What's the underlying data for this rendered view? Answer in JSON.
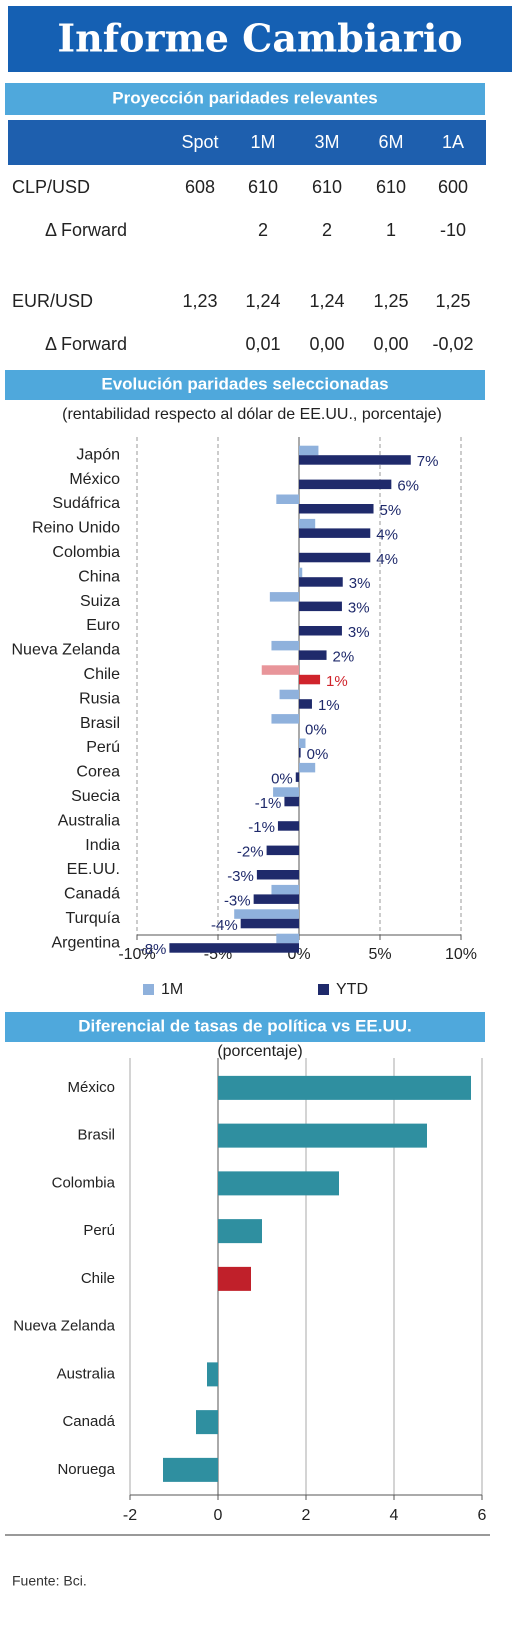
{
  "header": {
    "title": "Informe Cambiario"
  },
  "table": {
    "title": "Proyección paridades relevantes",
    "columns": [
      "Spot",
      "1M",
      "3M",
      "6M",
      "1A"
    ],
    "rows": [
      {
        "label": "CLP/USD",
        "cells": [
          "608",
          "610",
          "610",
          "610",
          "600"
        ]
      },
      {
        "label": "Δ Forward",
        "cells": [
          null,
          "2",
          "2",
          "1",
          "-10"
        ]
      },
      {
        "label": "EUR/USD",
        "cells": [
          "1,23",
          "1,24",
          "1,24",
          "1,25",
          "1,25"
        ]
      },
      {
        "label": "Δ Forward",
        "cells": [
          null,
          "0,01",
          "0,00",
          "0,00",
          "-0,02"
        ]
      }
    ]
  },
  "chart_data": [
    {
      "type": "bar",
      "orientation": "horizontal",
      "title": "Evolución paridades seleccionadas",
      "subtitle": "(rentabilidad respecto al dólar de EE.UU., porcentaje)",
      "categories": [
        "Japón",
        "México",
        "Sudáfrica",
        "Reino Unido",
        "Colombia",
        "China",
        "Suiza",
        "Euro",
        "Nueva Zelanda",
        "Chile",
        "Rusia",
        "Brasil",
        "Perú",
        "Corea",
        "Suecia",
        "Australia",
        "India",
        "EE.UU.",
        "Canadá",
        "Turquía",
        "Argentina"
      ],
      "series": [
        {
          "name": "1M",
          "color": "#8fb1dc",
          "highlight_color": "#e8959a",
          "values": [
            1.2,
            0,
            -1.4,
            1.0,
            0,
            0.2,
            -1.8,
            0,
            -1.7,
            -2.3,
            -1.2,
            -1.7,
            0.4,
            1.0,
            -1.6,
            0,
            0,
            0,
            -1.7,
            -4.0,
            -1.4
          ]
        },
        {
          "name": "YTD",
          "color": "#1f2a6b",
          "highlight_color": "#d0242c",
          "values": [
            6.9,
            5.7,
            4.6,
            4.4,
            4.4,
            2.7,
            2.65,
            2.65,
            1.7,
            1.3,
            0.8,
            0.0,
            0.1,
            -0.2,
            -0.9,
            -1.3,
            -2.0,
            -2.6,
            -2.8,
            -3.6,
            -8.0
          ],
          "value_labels": [
            "7%",
            "6%",
            "5%",
            "4%",
            "4%",
            "3%",
            "3%",
            "3%",
            "2%",
            "1%",
            "1%",
            "0%",
            "0%",
            "0%",
            "-1%",
            "-1%",
            "-2%",
            "-3%",
            "-3%",
            "-4%",
            "-8%"
          ]
        }
      ],
      "highlight": 9,
      "xlim": [
        -10,
        10
      ],
      "xticks": [
        {
          "value": -10,
          "label": "-10%"
        },
        {
          "value": -5,
          "label": "-5%"
        },
        {
          "value": 0,
          "label": "0%"
        },
        {
          "value": 5,
          "label": "5%"
        },
        {
          "value": 10,
          "label": "10%"
        }
      ],
      "grid": true,
      "legend": "bottom"
    },
    {
      "type": "bar",
      "orientation": "horizontal",
      "title": "Diferencial de tasas de política vs EE.UU.",
      "subtitle": "(porcentaje)",
      "categories": [
        "México",
        "Brasil",
        "Colombia",
        "Perú",
        "Chile",
        "Nueva Zelanda",
        "Australia",
        "Canadá",
        "Noruega"
      ],
      "values": [
        5.75,
        4.75,
        2.75,
        1.0,
        0.75,
        0,
        -0.25,
        -0.5,
        -1.25
      ],
      "color": "#2f8fa0",
      "highlight": 4,
      "highlight_color": "#c0202a",
      "xlim": [
        -2,
        6
      ],
      "xticks": [
        -2,
        0,
        2,
        4,
        6
      ],
      "grid": true
    }
  ],
  "footer": {
    "source": "Fuente: Bci."
  }
}
